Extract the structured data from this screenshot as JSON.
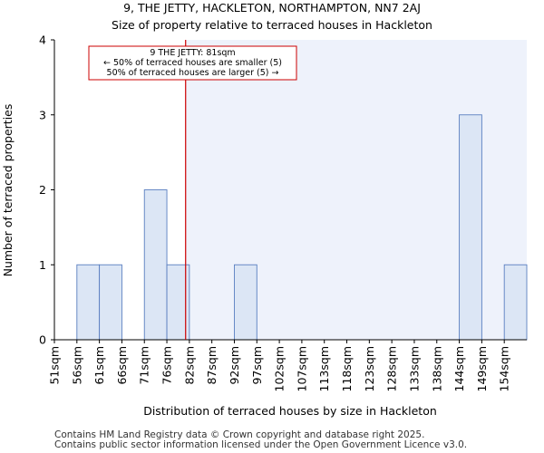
{
  "chart_data": {
    "type": "bar",
    "title": "9, THE JETTY, HACKLETON, NORTHAMPTON, NN7 2AJ",
    "subtitle": "Size of property relative to terraced houses in Hackleton",
    "xlabel": "Distribution of terraced houses by size in Hackleton",
    "ylabel": "Number of terraced properties",
    "categories": [
      "51sqm",
      "56sqm",
      "61sqm",
      "66sqm",
      "71sqm",
      "76sqm",
      "82sqm",
      "87sqm",
      "92sqm",
      "97sqm",
      "102sqm",
      "107sqm",
      "113sqm",
      "118sqm",
      "123sqm",
      "128sqm",
      "133sqm",
      "138sqm",
      "144sqm",
      "149sqm",
      "154sqm"
    ],
    "values": [
      0,
      1,
      1,
      0,
      2,
      1,
      0,
      0,
      1,
      0,
      0,
      0,
      0,
      0,
      0,
      0,
      0,
      0,
      3,
      0,
      1
    ],
    "ylim": [
      0,
      4
    ],
    "yticks": [
      0,
      1,
      2,
      3,
      4
    ],
    "grid": false,
    "bar_color": "#dce6f5",
    "bar_edge_color": "#5a7fc0",
    "shade_color": "#eef2fb",
    "marker": {
      "value_sqm": 81,
      "color": "#cc0000",
      "annotation_lines": [
        "9 THE JETTY: 81sqm",
        "← 50% of terraced houses are smaller (5)",
        "50% of terraced houses are larger (5) →"
      ]
    }
  },
  "footer": {
    "line1": "Contains HM Land Registry data © Crown copyright and database right 2025.",
    "line2": "Contains public sector information licensed under the Open Government Licence v3.0."
  }
}
